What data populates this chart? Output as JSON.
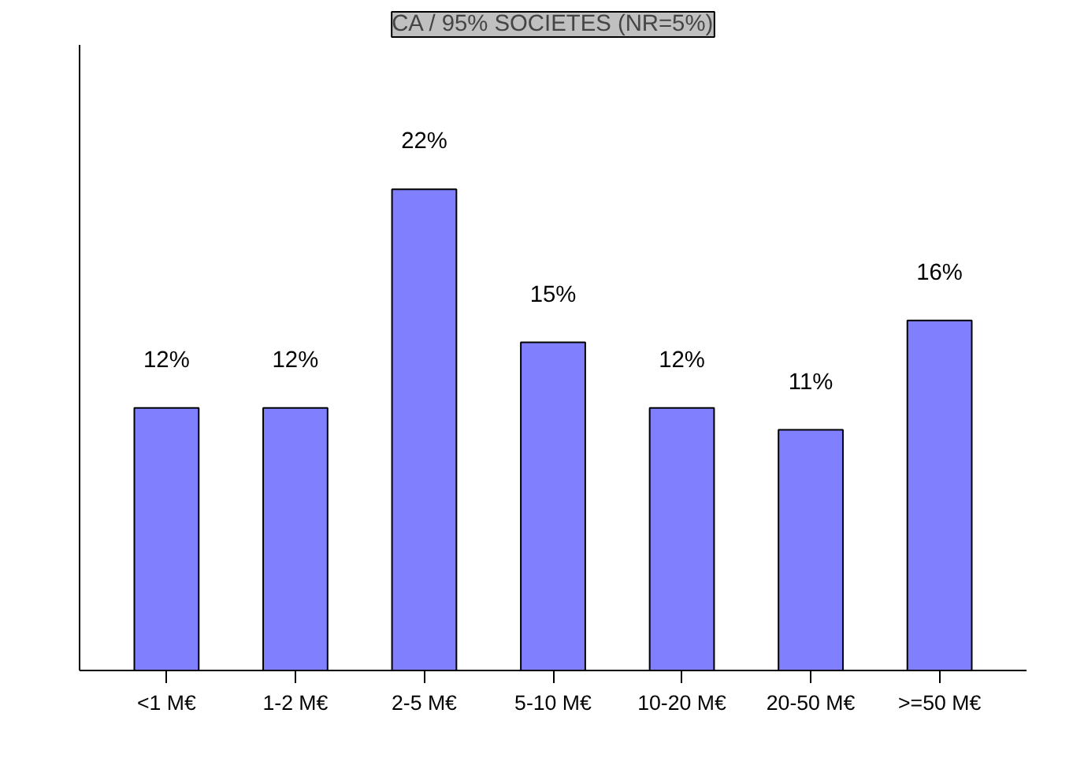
{
  "chart_data": {
    "type": "bar",
    "title": "CA / 95% SOCIETES (NR=5%)",
    "categories": [
      "<1 M€",
      "1-2 M€",
      "2-5 M€",
      "5-10 M€",
      "10-20 M€",
      "20-50 M€",
      ">=50 M€"
    ],
    "values": [
      12,
      12,
      22,
      15,
      12,
      11,
      16
    ],
    "value_labels": [
      "12%",
      "12%",
      "22%",
      "15%",
      "12%",
      "11%",
      "16%"
    ],
    "color": "#8080ff",
    "grid": false
  }
}
